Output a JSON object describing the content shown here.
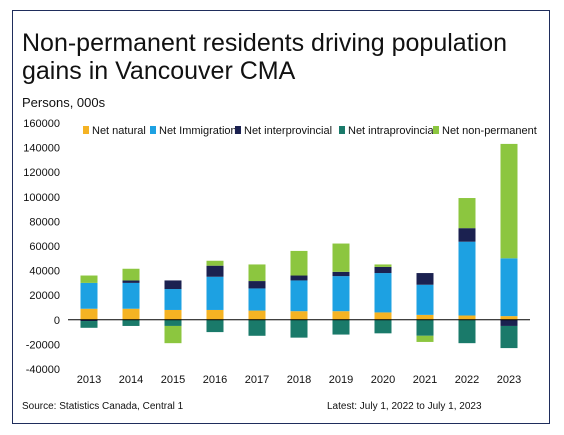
{
  "header": {
    "title": "Non-permanent residents driving population gains in Vancouver CMA",
    "units": "Persons, 000s"
  },
  "footer": {
    "source": "Source: Statistics Canada, Central 1",
    "latest": "Latest: July 1, 2022 to July 1, 2023"
  },
  "colors": {
    "Net natural": "#f5b323",
    "Net Immigration": "#1da1e2",
    "Net interprovincial": "#1b2150",
    "Net intraprovincial": "#1a7a6a",
    "Net non-permanent": "#8cc63f"
  },
  "chart_data": {
    "type": "bar",
    "stacked": true,
    "categories": [
      "2013",
      "2014",
      "2015",
      "2016",
      "2017",
      "2018",
      "2019",
      "2020",
      "2021",
      "2022",
      "2023"
    ],
    "ylim": [
      -40000,
      160000
    ],
    "yticks": [
      -40000,
      -20000,
      0,
      20000,
      40000,
      60000,
      80000,
      100000,
      120000,
      140000,
      160000
    ],
    "legend_position": "top",
    "grid": false,
    "series": [
      {
        "name": "Net natural",
        "values": [
          9000,
          9000,
          8000,
          8000,
          7500,
          7000,
          7000,
          6000,
          4000,
          3500,
          3000
        ]
      },
      {
        "name": "Net Immigration",
        "values": [
          21000,
          21000,
          17000,
          27000,
          18000,
          25000,
          28500,
          32000,
          24500,
          60000,
          47000
        ]
      },
      {
        "name": "Net interprovincial",
        "values": [
          -1000,
          2000,
          7000,
          9000,
          6000,
          4000,
          3500,
          5000,
          9500,
          11000,
          -5000
        ]
      },
      {
        "name": "Net intraprovincial",
        "values": [
          -5500,
          -5000,
          -5000,
          -10000,
          -13000,
          -14500,
          -12000,
          -11000,
          -13000,
          -19000,
          -18000
        ]
      },
      {
        "name": "Net non-permanent",
        "values": [
          6000,
          9500,
          -14000,
          4000,
          13500,
          20000,
          23000,
          2000,
          -5000,
          24500,
          93000
        ]
      }
    ]
  }
}
